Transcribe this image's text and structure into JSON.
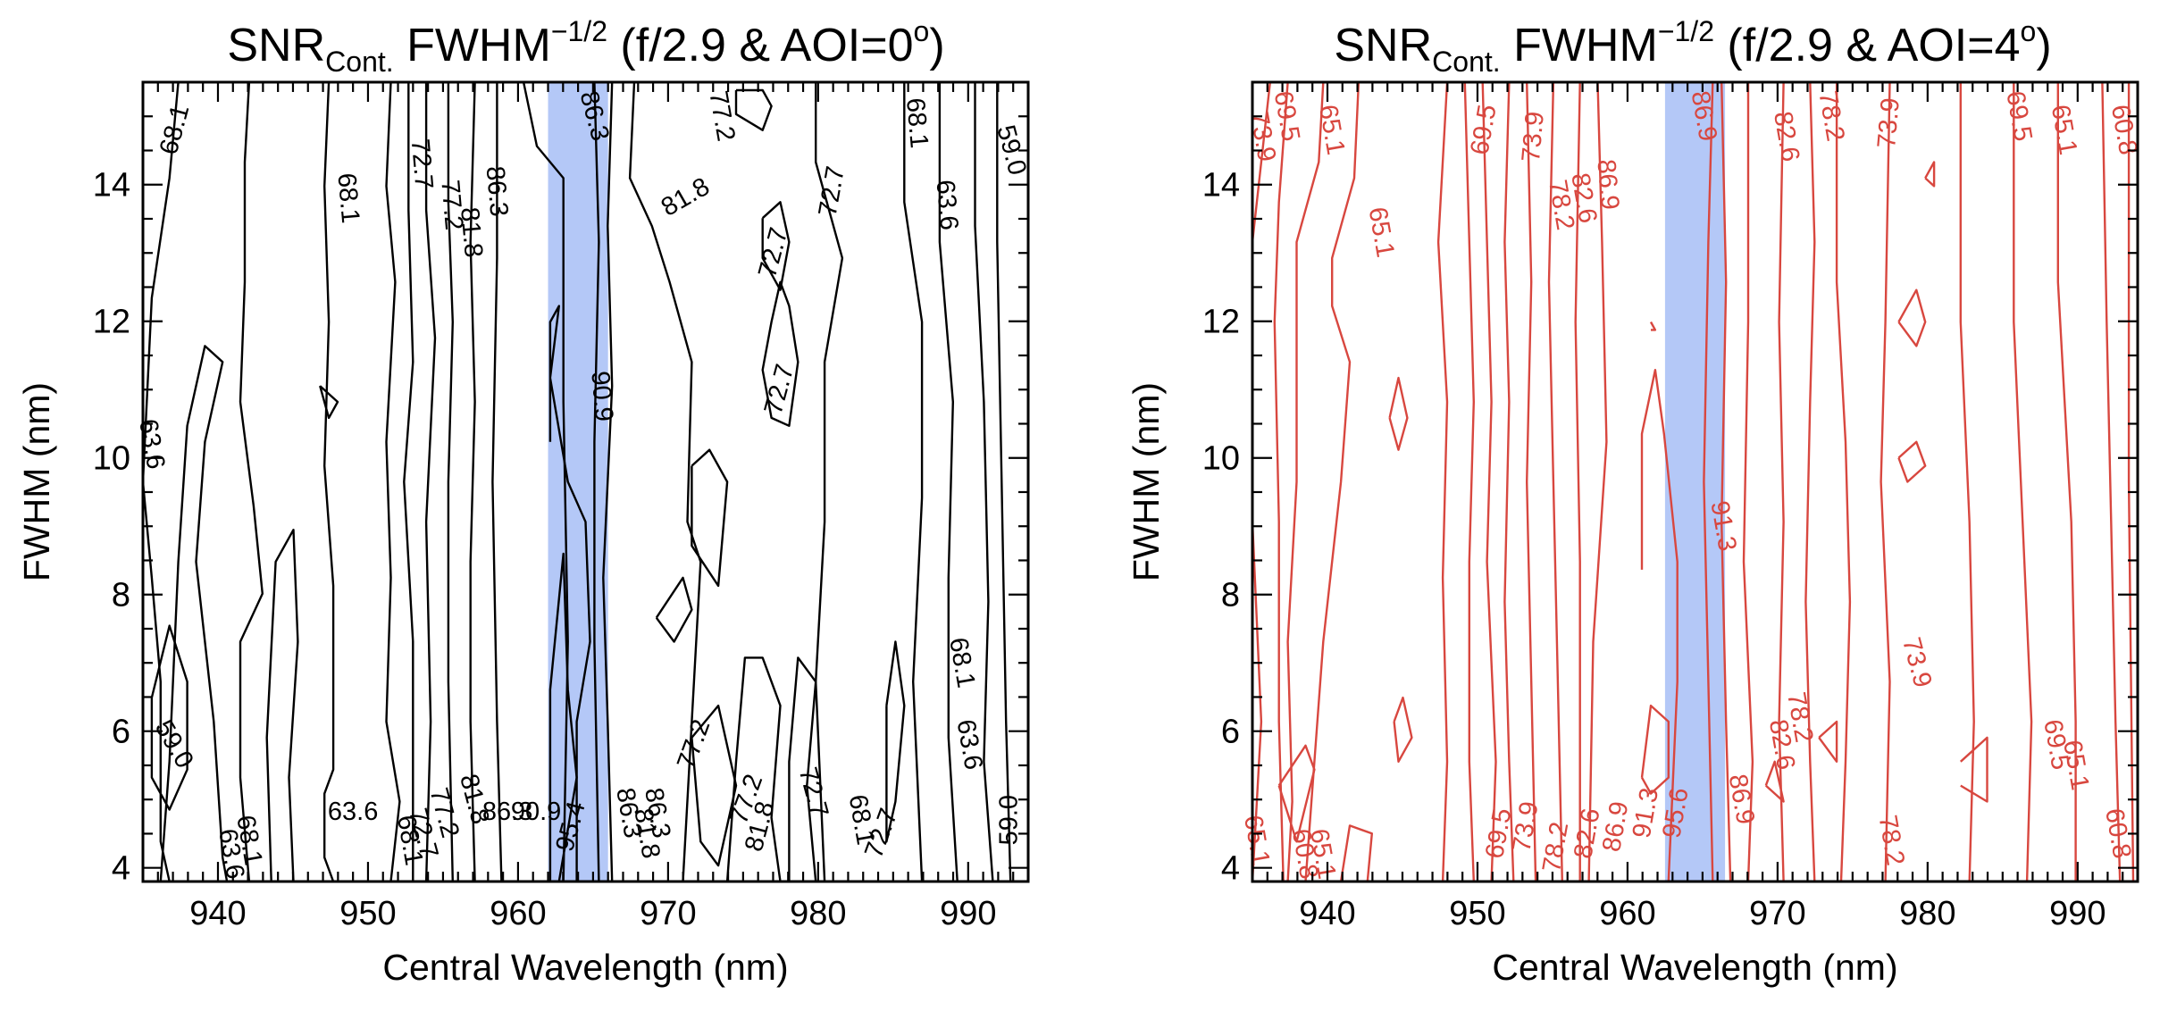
{
  "chart_data": [
    {
      "type": "contour",
      "title_prefix": "SNR",
      "title_sub": "Cont.",
      "title_mid": " FWHM",
      "title_sup": "−1/2",
      "title_suffix": " (f/2.9 & AOI=0",
      "title_deg": "o",
      "title_end": ")",
      "xlabel": "Central Wavelength (nm)",
      "ylabel": "FWHM (nm)",
      "xlim": [
        935,
        994
      ],
      "ylim": [
        3.8,
        15.5
      ],
      "xticks": [
        940,
        950,
        960,
        970,
        980,
        990
      ],
      "yticks": [
        4,
        6,
        8,
        10,
        12,
        14
      ],
      "line_color": "#000000",
      "highlight_band": {
        "x0": 962,
        "x1": 966,
        "color": "#b4c8f7"
      },
      "contour_labels": [
        {
          "text": "68.1",
          "x": 937.2,
          "y": 14.8,
          "angle": -75
        },
        {
          "text": "63.6",
          "x": 935.5,
          "y": 10.2,
          "angle": 80
        },
        {
          "text": "59.0",
          "x": 937.0,
          "y": 5.8,
          "angle": 60
        },
        {
          "text": "63.6",
          "x": 940.8,
          "y": 4.2,
          "angle": 80
        },
        {
          "text": "68.1",
          "x": 942.0,
          "y": 4.4,
          "angle": 80
        },
        {
          "text": "68.1",
          "x": 948.6,
          "y": 13.8,
          "angle": 85
        },
        {
          "text": "63.6",
          "x": 949.0,
          "y": 4.8,
          "angle": 0
        },
        {
          "text": "72.7",
          "x": 953.5,
          "y": 14.3,
          "angle": 85
        },
        {
          "text": "77.2",
          "x": 955.5,
          "y": 13.7,
          "angle": 85
        },
        {
          "text": "81.8",
          "x": 956.8,
          "y": 13.3,
          "angle": 85
        },
        {
          "text": "86.3",
          "x": 958.5,
          "y": 13.9,
          "angle": 85
        },
        {
          "text": "68.1",
          "x": 952.7,
          "y": 4.4,
          "angle": 80
        },
        {
          "text": "72.7",
          "x": 953.6,
          "y": 4.5,
          "angle": 75
        },
        {
          "text": "77.2",
          "x": 955.0,
          "y": 4.8,
          "angle": 75
        },
        {
          "text": "81.8",
          "x": 957.0,
          "y": 5.0,
          "angle": 75
        },
        {
          "text": "86.3",
          "x": 959.3,
          "y": 4.8,
          "angle": 0
        },
        {
          "text": "90.9",
          "x": 961.2,
          "y": 4.8,
          "angle": 0
        },
        {
          "text": "95.4",
          "x": 963.6,
          "y": 4.6,
          "angle": -75
        },
        {
          "text": "86.3",
          "x": 965.0,
          "y": 15.0,
          "angle": 75
        },
        {
          "text": "90.9",
          "x": 965.5,
          "y": 10.9,
          "angle": 85
        },
        {
          "text": "81.8",
          "x": 971.2,
          "y": 13.8,
          "angle": -30
        },
        {
          "text": "77.2",
          "x": 973.5,
          "y": 15.0,
          "angle": 80
        },
        {
          "text": "72.7",
          "x": 977.1,
          "y": 13.0,
          "angle": -75
        },
        {
          "text": "72.7",
          "x": 977.5,
          "y": 11.0,
          "angle": -75
        },
        {
          "text": "72.7",
          "x": 981.0,
          "y": 13.9,
          "angle": -80
        },
        {
          "text": "68.1",
          "x": 986.5,
          "y": 14.9,
          "angle": 85
        },
        {
          "text": "63.6",
          "x": 988.5,
          "y": 13.7,
          "angle": 85
        },
        {
          "text": "59.0",
          "x": 992.8,
          "y": 14.5,
          "angle": 75
        },
        {
          "text": "86.3",
          "x": 967.3,
          "y": 4.8,
          "angle": 80
        },
        {
          "text": "81.8",
          "x": 968.5,
          "y": 4.5,
          "angle": 80
        },
        {
          "text": "77.2",
          "x": 971.8,
          "y": 5.8,
          "angle": -70
        },
        {
          "text": "86.3",
          "x": 969.2,
          "y": 4.8,
          "angle": 80
        },
        {
          "text": "77.2",
          "x": 975.3,
          "y": 5.0,
          "angle": -70
        },
        {
          "text": "81.8",
          "x": 976.2,
          "y": 4.6,
          "angle": -75
        },
        {
          "text": "72.7",
          "x": 979.6,
          "y": 5.1,
          "angle": 75
        },
        {
          "text": "68.1",
          "x": 982.8,
          "y": 4.7,
          "angle": 80
        },
        {
          "text": "72.7",
          "x": 984.3,
          "y": 4.5,
          "angle": -70
        },
        {
          "text": "68.1",
          "x": 989.5,
          "y": 7.0,
          "angle": 80
        },
        {
          "text": "63.6",
          "x": 990.0,
          "y": 5.8,
          "angle": 80
        },
        {
          "text": "59.0",
          "x": 992.8,
          "y": 4.7,
          "angle": -90
        }
      ]
    },
    {
      "type": "contour",
      "title_prefix": "SNR",
      "title_sub": "Cont.",
      "title_mid": " FWHM",
      "title_sup": "−1/2",
      "title_suffix": " (f/2.9 & AOI=4",
      "title_deg": "o",
      "title_end": ")",
      "xlabel": "Central Wavelength (nm)",
      "ylabel": "FWHM (nm)",
      "xlim": [
        935,
        994
      ],
      "ylim": [
        3.8,
        15.5
      ],
      "xticks": [
        940,
        950,
        960,
        970,
        980,
        990
      ],
      "yticks": [
        4,
        6,
        8,
        10,
        12,
        14
      ],
      "line_color": "#d8473f",
      "highlight_band": {
        "x0": 962.5,
        "x1": 966.5,
        "color": "#b4c8f7"
      },
      "contour_labels": [
        {
          "text": "73.9",
          "x": 935.6,
          "y": 14.7,
          "angle": 80
        },
        {
          "text": "69.5",
          "x": 937.2,
          "y": 15.0,
          "angle": 80
        },
        {
          "text": "65.1",
          "x": 940.2,
          "y": 14.8,
          "angle": 80
        },
        {
          "text": "65.1",
          "x": 943.5,
          "y": 13.3,
          "angle": 80
        },
        {
          "text": "69.5",
          "x": 950.5,
          "y": 14.8,
          "angle": -80
        },
        {
          "text": "73.9",
          "x": 953.8,
          "y": 14.7,
          "angle": -85
        },
        {
          "text": "78.2",
          "x": 955.5,
          "y": 13.7,
          "angle": 80
        },
        {
          "text": "82.6",
          "x": 957.0,
          "y": 13.8,
          "angle": 80
        },
        {
          "text": "86.9",
          "x": 958.6,
          "y": 14.0,
          "angle": 85
        },
        {
          "text": "86.9",
          "x": 965.0,
          "y": 15.0,
          "angle": 80
        },
        {
          "text": "91.3",
          "x": 966.3,
          "y": 9.0,
          "angle": 80
        },
        {
          "text": "82.6",
          "x": 970.5,
          "y": 14.7,
          "angle": 80
        },
        {
          "text": "78.2",
          "x": 973.5,
          "y": 15.0,
          "angle": 80
        },
        {
          "text": "73.9",
          "x": 977.5,
          "y": 14.9,
          "angle": -85
        },
        {
          "text": "69.5",
          "x": 986.0,
          "y": 15.0,
          "angle": 80
        },
        {
          "text": "65.1",
          "x": 989.0,
          "y": 14.8,
          "angle": 80
        },
        {
          "text": "60.8",
          "x": 993.0,
          "y": 14.8,
          "angle": 80
        },
        {
          "text": "73.9",
          "x": 979.2,
          "y": 7.0,
          "angle": 75
        },
        {
          "text": "65.1",
          "x": 935.2,
          "y": 4.4,
          "angle": 80
        },
        {
          "text": "60.8",
          "x": 938.4,
          "y": 4.2,
          "angle": 80
        },
        {
          "text": "65.1",
          "x": 939.6,
          "y": 4.2,
          "angle": 80
        },
        {
          "text": "69.5",
          "x": 951.5,
          "y": 4.5,
          "angle": -80
        },
        {
          "text": "73.9",
          "x": 953.3,
          "y": 4.6,
          "angle": -80
        },
        {
          "text": "78.2",
          "x": 955.3,
          "y": 4.3,
          "angle": -80
        },
        {
          "text": "82.6",
          "x": 957.4,
          "y": 4.5,
          "angle": -80
        },
        {
          "text": "86.9",
          "x": 959.3,
          "y": 4.6,
          "angle": -80
        },
        {
          "text": "91.3",
          "x": 961.3,
          "y": 4.8,
          "angle": -80
        },
        {
          "text": "95.6",
          "x": 963.3,
          "y": 4.8,
          "angle": -80
        },
        {
          "text": "86.9",
          "x": 967.5,
          "y": 5.0,
          "angle": 80
        },
        {
          "text": "82.6",
          "x": 970.2,
          "y": 5.8,
          "angle": 80
        },
        {
          "text": "78.2",
          "x": 971.4,
          "y": 6.2,
          "angle": 80
        },
        {
          "text": "78.2",
          "x": 977.5,
          "y": 4.4,
          "angle": 80
        },
        {
          "text": "69.5",
          "x": 988.5,
          "y": 5.8,
          "angle": 80
        },
        {
          "text": "65.1",
          "x": 989.8,
          "y": 5.5,
          "angle": 80
        },
        {
          "text": "60.8",
          "x": 992.6,
          "y": 4.5,
          "angle": 80
        }
      ]
    }
  ]
}
